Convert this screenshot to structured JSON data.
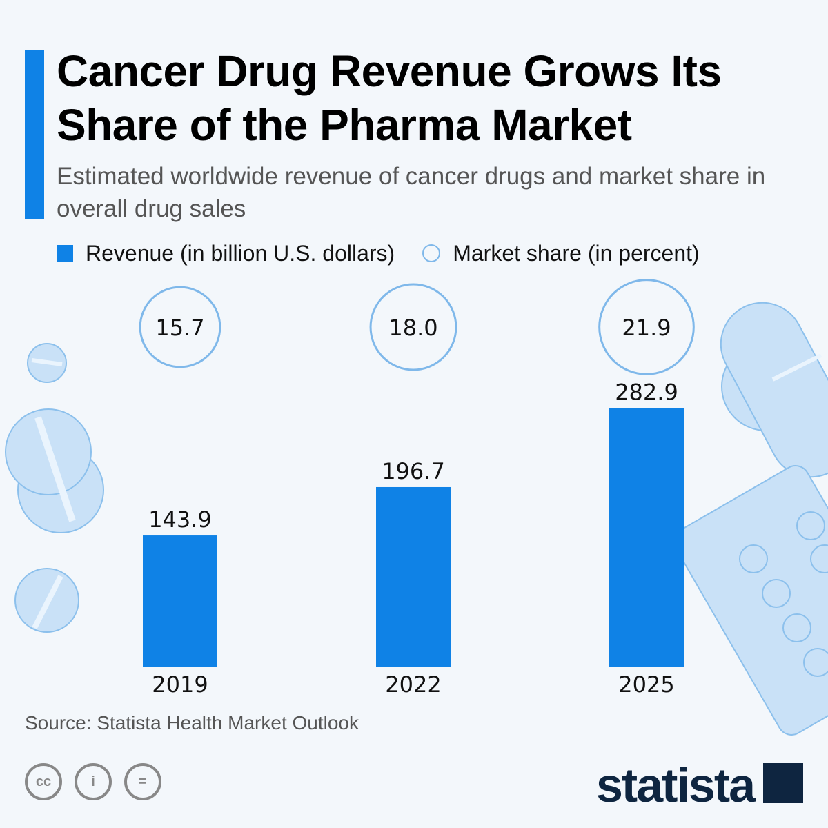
{
  "title": "Cancer Drug Revenue Grows Its Share of the Pharma Market",
  "subtitle": "Estimated worldwide revenue of cancer drugs and market share in overall drug sales",
  "legend": {
    "revenue": "Revenue (in billion U.S. dollars)",
    "share": "Market share (in percent)"
  },
  "source": "Source: Statista Health Market Outlook",
  "logo": "statista",
  "license_icons": [
    "cc-icon",
    "attribution-icon",
    "no-derivatives-icon"
  ],
  "colors": {
    "bar": "#0f82e6",
    "circle": "#7fb8ea",
    "accent": "#0f82e6",
    "logo": "#0e2540"
  },
  "chart_data": {
    "type": "bar",
    "categories": [
      "2019",
      "2022",
      "2025"
    ],
    "series": [
      {
        "name": "Revenue (in billion U.S. dollars)",
        "values": [
          143.9,
          196.7,
          282.9
        ],
        "labels": [
          "143.9",
          "196.7",
          "282.9"
        ]
      },
      {
        "name": "Market share (in percent)",
        "values": [
          15.7,
          18.0,
          21.9
        ],
        "labels": [
          "15.7",
          "18.0",
          "21.9"
        ]
      }
    ],
    "grid": false,
    "legend_position": "top-left"
  }
}
